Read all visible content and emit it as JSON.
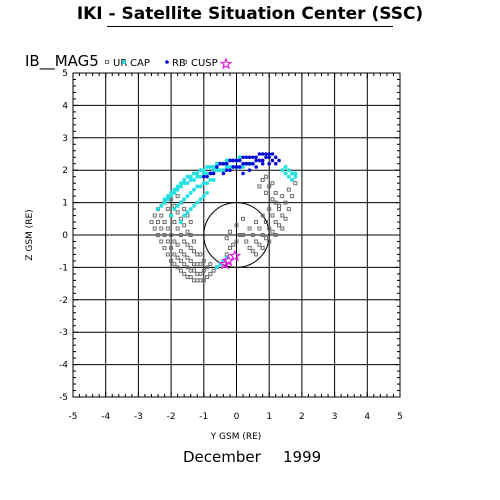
{
  "header": {
    "title": "IKI - Satellite Situation Center (SSC)"
  },
  "chart_data": {
    "type": "scatter",
    "title": "IKI - Satellite Situation Center (SSC)",
    "satellite": "IB__MAG5",
    "date_month": "December",
    "date_year": "1999",
    "xlabel": "Y GSM (RE)",
    "ylabel": "Z GSM (RE)",
    "xlim": [
      -5,
      5
    ],
    "ylim": [
      -5,
      5
    ],
    "xticks": [
      "-5",
      "-4",
      "-3",
      "-2",
      "-1",
      "0",
      "1",
      "2",
      "3",
      "4",
      "5"
    ],
    "yticks": [
      "-5",
      "-4",
      "-3",
      "-2",
      "-1",
      "0",
      "1",
      "2",
      "3",
      "4",
      "5"
    ],
    "grid": true,
    "legend_placement": "top",
    "earth_circle_radius": 1,
    "colors": {
      "gray": "#6e6e6e",
      "cyan": "#22e0e0",
      "blue": "#0a0ad8",
      "cusp": "#e020e0"
    },
    "legend": [
      {
        "label": "UR",
        "color": "#6e6e6e",
        "marker": "square"
      },
      {
        "label": "CAP",
        "color": "#22e0e0",
        "marker": "asterisk"
      },
      {
        "label": "RB",
        "color": "#0a0ad8",
        "marker": "dot"
      },
      {
        "label": "CUSP",
        "color": "#e020e0",
        "marker": "star"
      }
    ],
    "series": [
      {
        "name": "UR",
        "color": "#6e6e6e",
        "marker": "square",
        "x": [
          -2.6,
          -2.5,
          -2.4,
          -2.3,
          -2.2,
          -2.1,
          -2.0,
          -1.9,
          -1.8,
          -1.7,
          -1.6,
          -1.5,
          -1.4,
          -1.3,
          -1.2,
          -1.1,
          -1.0,
          -0.9,
          -0.8,
          -0.7,
          -0.6,
          -2.5,
          -2.4,
          -2.3,
          -2.2,
          -2.1,
          -2.0,
          -1.9,
          -1.8,
          -1.7,
          -1.6,
          -1.5,
          -1.4,
          -1.3,
          -1.2,
          -1.1,
          -1.0,
          -0.9,
          -0.8,
          -2.4,
          -2.3,
          -2.2,
          -2.1,
          -2.0,
          -1.9,
          -1.8,
          -1.7,
          -1.6,
          -1.5,
          -1.4,
          -1.3,
          -1.2,
          -1.1,
          -1.0,
          -2.2,
          -2.1,
          -2.0,
          -1.9,
          -1.8,
          -1.7,
          -1.6,
          -1.5,
          -1.4,
          -1.3,
          -1.2,
          -1.1,
          -2.0,
          -1.9,
          -1.8,
          -1.7,
          -1.6,
          -1.5,
          -1.4,
          -1.3,
          -1.8,
          -1.7,
          -1.6,
          -1.5,
          -1.4,
          0.2,
          0.4,
          0.6,
          0.8,
          1.0,
          1.2,
          1.4,
          1.6,
          1.8,
          0.3,
          0.5,
          0.7,
          0.9,
          1.1,
          1.3,
          1.5,
          1.7,
          0.4,
          0.6,
          0.8,
          1.0,
          1.2,
          1.4,
          1.6,
          0.5,
          0.7,
          0.9,
          1.1,
          1.3,
          1.5,
          0.6,
          0.8,
          1.0,
          1.2,
          1.4,
          0.7,
          0.9,
          1.1,
          1.3,
          0.8,
          1.0,
          1.2,
          0.9,
          1.1,
          -0.4,
          -0.3,
          -0.2,
          -0.1,
          0.0,
          0.1,
          -0.3,
          -0.2,
          0.0,
          0.2
        ],
        "y": [
          0.4,
          0.2,
          0.0,
          -0.2,
          -0.4,
          -0.6,
          -0.8,
          -0.9,
          -1.0,
          -1.1,
          -1.2,
          -1.3,
          -1.3,
          -1.4,
          -1.4,
          -1.4,
          -1.4,
          -1.3,
          -1.2,
          -1.1,
          -1.0,
          0.6,
          0.4,
          0.2,
          0.0,
          -0.2,
          -0.4,
          -0.6,
          -0.7,
          -0.8,
          -0.9,
          -1.0,
          -1.1,
          -1.1,
          -1.2,
          -1.2,
          -1.1,
          -1.0,
          -0.9,
          0.8,
          0.6,
          0.4,
          0.2,
          0.0,
          -0.2,
          -0.3,
          -0.5,
          -0.6,
          -0.7,
          -0.8,
          -0.9,
          -0.9,
          -0.9,
          -0.8,
          1.0,
          0.8,
          0.6,
          0.4,
          0.2,
          0.0,
          -0.2,
          -0.3,
          -0.4,
          -0.5,
          -0.6,
          -0.6,
          1.1,
          0.9,
          0.7,
          0.5,
          0.3,
          0.1,
          0.0,
          -0.2,
          1.2,
          1.0,
          0.8,
          0.6,
          0.4,
          0.0,
          0.2,
          0.4,
          0.6,
          0.8,
          1.0,
          1.2,
          1.4,
          1.6,
          -0.2,
          0.0,
          0.2,
          0.4,
          0.6,
          0.8,
          1.0,
          1.2,
          -0.4,
          -0.2,
          0.0,
          0.2,
          0.4,
          0.6,
          0.8,
          -0.5,
          -0.3,
          -0.1,
          0.1,
          0.3,
          0.5,
          -0.6,
          -0.4,
          -0.2,
          0.0,
          0.2,
          1.5,
          1.3,
          1.1,
          0.9,
          1.7,
          1.5,
          1.3,
          1.8,
          1.6,
          -0.8,
          -0.6,
          -0.4,
          -0.3,
          -0.2,
          0.0,
          -0.1,
          0.1,
          0.3,
          0.5
        ]
      },
      {
        "name": "CAP",
        "color": "#22e0e0",
        "marker": "asterisk",
        "x": [
          -2.4,
          -2.3,
          -2.2,
          -2.1,
          -2.0,
          -1.9,
          -1.8,
          -1.7,
          -1.6,
          -1.5,
          -1.4,
          -1.3,
          -1.2,
          -1.1,
          -1.0,
          -0.9,
          -0.8,
          -0.7,
          -0.6,
          -0.5,
          -0.4,
          -0.3,
          -0.2,
          -0.1,
          0.0,
          0.1,
          0.2,
          0.3,
          0.4,
          0.5,
          -2.2,
          -2.1,
          -2.0,
          -1.9,
          -1.8,
          -1.7,
          -1.6,
          -1.5,
          -1.4,
          -1.3,
          -1.2,
          -1.1,
          -1.0,
          -0.9,
          -0.8,
          -0.7,
          -0.6,
          -0.5,
          -0.4,
          -0.3,
          -0.2,
          -0.1,
          0.0,
          0.1,
          -2.0,
          -1.9,
          -1.8,
          -1.7,
          -1.6,
          -1.5,
          -1.4,
          -1.3,
          -1.2,
          -1.1,
          -1.0,
          -0.9,
          -0.8,
          -0.7,
          -1.7,
          -1.6,
          -1.5,
          -1.4,
          -1.3,
          -1.2,
          -1.1,
          -1.0,
          -0.9,
          1.4,
          1.5,
          1.6,
          1.7,
          1.8,
          1.5,
          1.6,
          1.7,
          1.8,
          -0.6,
          -0.5,
          -0.4,
          -0.3
        ],
        "y": [
          0.8,
          0.9,
          1.0,
          1.1,
          1.2,
          1.3,
          1.4,
          1.5,
          1.6,
          1.6,
          1.7,
          1.7,
          1.8,
          1.8,
          1.9,
          1.9,
          1.9,
          2.0,
          2.0,
          2.0,
          2.0,
          2.1,
          2.1,
          2.1,
          2.1,
          2.1,
          2.1,
          2.2,
          2.2,
          2.2,
          1.1,
          1.2,
          1.3,
          1.4,
          1.5,
          1.6,
          1.7,
          1.8,
          1.8,
          1.9,
          1.9,
          2.0,
          2.0,
          2.1,
          2.1,
          2.1,
          2.2,
          2.2,
          2.2,
          2.3,
          2.3,
          2.3,
          2.3,
          2.4,
          0.6,
          0.8,
          0.9,
          1.0,
          1.1,
          1.2,
          1.3,
          1.4,
          1.5,
          1.5,
          1.6,
          1.6,
          1.7,
          1.7,
          0.4,
          0.6,
          0.7,
          0.8,
          0.9,
          1.0,
          1.1,
          1.2,
          1.3,
          2.0,
          1.9,
          1.8,
          1.7,
          1.9,
          2.1,
          2.0,
          1.9,
          1.8,
          -1.0,
          -0.9,
          -0.8,
          -0.7
        ]
      },
      {
        "name": "RB",
        "color": "#0a0ad8",
        "marker": "dot",
        "x": [
          -0.6,
          -0.5,
          -0.4,
          -0.3,
          -0.2,
          -0.1,
          0.0,
          0.1,
          0.2,
          0.3,
          0.4,
          0.5,
          0.6,
          0.7,
          0.8,
          0.9,
          1.0,
          1.1,
          1.2,
          1.3,
          -0.4,
          -0.3,
          -0.2,
          -0.1,
          0.0,
          0.1,
          0.2,
          0.3,
          0.4,
          0.5,
          0.6,
          0.7,
          0.8,
          0.9,
          1.0,
          1.1,
          1.2,
          -1.0,
          -0.9,
          -0.8,
          -0.7,
          0.2,
          0.4,
          0.6,
          0.8,
          1.0
        ],
        "y": [
          2.1,
          2.2,
          2.2,
          2.2,
          2.3,
          2.3,
          2.3,
          2.3,
          2.4,
          2.4,
          2.4,
          2.4,
          2.4,
          2.5,
          2.5,
          2.5,
          2.5,
          2.5,
          2.4,
          2.3,
          1.9,
          2.0,
          2.0,
          2.1,
          2.1,
          2.1,
          2.2,
          2.2,
          2.2,
          2.2,
          2.3,
          2.3,
          2.3,
          2.4,
          2.4,
          2.3,
          2.2,
          1.8,
          1.8,
          1.9,
          1.9,
          1.9,
          2.0,
          2.1,
          2.2,
          2.2
        ]
      },
      {
        "name": "CUSP",
        "color": "#e020e0",
        "marker": "star",
        "x": [
          -0.35,
          -0.25,
          -0.05
        ],
        "y": [
          -0.9,
          -0.8,
          -0.65
        ]
      }
    ]
  }
}
